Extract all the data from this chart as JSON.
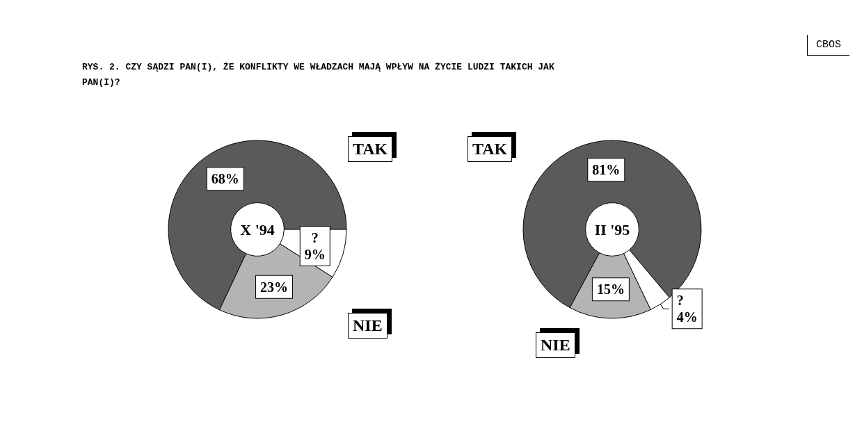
{
  "chart_data": [
    {
      "type": "donut",
      "title": "X '94",
      "annotations": [
        "RYS. 2. CZY SĄDZI PAN(I), ŻE KONFLIKTY WE WŁADZACH MAJĄ WPŁYW NA ŻYCIE LUDZI TAKICH JAK PAN(I)?",
        "CBOS"
      ],
      "categories": [
        "TAK",
        "NIE",
        "?"
      ],
      "values": [
        68,
        23,
        9
      ],
      "value_labels": [
        "68%",
        "23%",
        "9%"
      ],
      "colors": [
        "#5a5a5a",
        "#b4b4b4",
        "#ffffff"
      ]
    },
    {
      "type": "donut",
      "title": "II '95",
      "categories": [
        "TAK",
        "NIE",
        "?"
      ],
      "values": [
        81,
        15,
        4
      ],
      "value_labels": [
        "81%",
        "15%",
        "4%"
      ],
      "colors": [
        "#5a5a5a",
        "#b4b4b4",
        "#ffffff"
      ]
    }
  ]
}
